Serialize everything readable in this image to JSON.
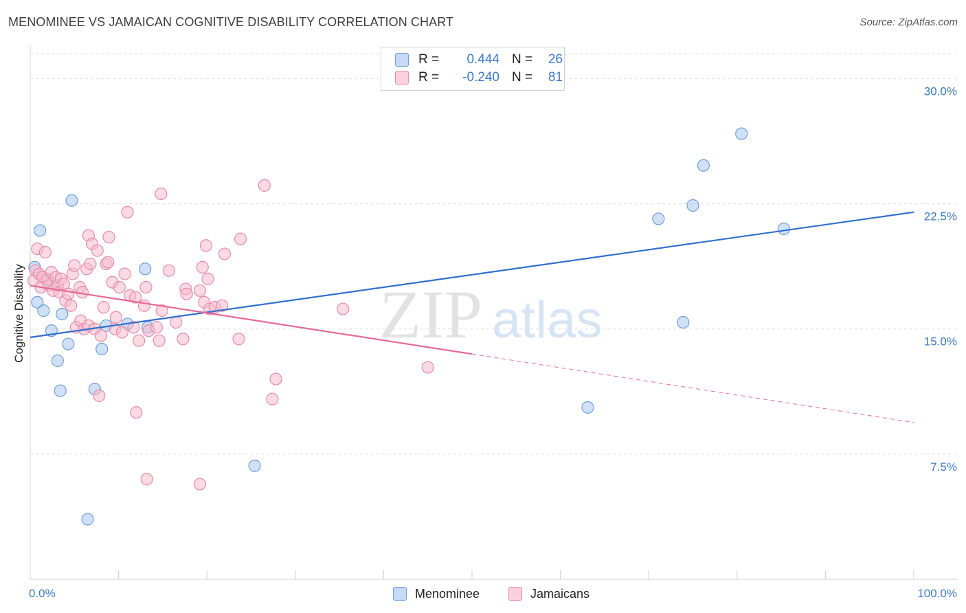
{
  "header": {
    "title": "MENOMINEE VS JAMAICAN COGNITIVE DISABILITY CORRELATION CHART",
    "source": "Source: ZipAtlas.com"
  },
  "watermark": {
    "zip": "ZIP",
    "atlas": "atlas"
  },
  "legend": {
    "rows": [
      {
        "r_label": "R =",
        "r_value": "0.444",
        "n_label": "N =",
        "n_value": "26",
        "color": "#a9c8f0",
        "border": "#6d9ee0"
      },
      {
        "r_label": "R =",
        "r_value": "-0.240",
        "n_label": "N =",
        "n_value": "81",
        "color": "#f7bccd",
        "border": "#e88aa8"
      }
    ]
  },
  "bottom_legend": {
    "series1": "Menominee",
    "series2": "Jamaicans"
  },
  "chart_data": {
    "type": "scatter",
    "title": "MENOMINEE VS JAMAICAN COGNITIVE DISABILITY CORRELATION CHART",
    "xlabel": "",
    "ylabel": "Cognitive Disability",
    "xlim": [
      0,
      100
    ],
    "ylim": [
      0,
      31.5
    ],
    "x_tick_labels": [
      "0.0%",
      "100.0%"
    ],
    "y_ticks": [
      7.5,
      15.0,
      22.5,
      30.0
    ],
    "y_tick_labels": [
      "7.5%",
      "15.0%",
      "22.5%",
      "30.0%"
    ],
    "grid": true,
    "series": [
      {
        "name": "Menominee",
        "color": "#a9c8f0",
        "edge": "#6d9ee0",
        "line_color": "#2f6fcc",
        "trend": {
          "x": [
            0,
            100
          ],
          "y": [
            14.5,
            22.0
          ],
          "dashed_from": null
        },
        "points": [
          [
            0.8,
            16.6
          ],
          [
            1.1,
            20.9
          ],
          [
            1.5,
            16.1
          ],
          [
            2.0,
            17.9
          ],
          [
            2.4,
            14.9
          ],
          [
            3.1,
            13.1
          ],
          [
            3.4,
            11.3
          ],
          [
            3.6,
            15.9
          ],
          [
            4.3,
            14.1
          ],
          [
            4.7,
            22.7
          ],
          [
            6.5,
            3.6
          ],
          [
            7.3,
            11.4
          ],
          [
            8.1,
            13.8
          ],
          [
            8.6,
            15.2
          ],
          [
            11.0,
            15.3
          ],
          [
            13.3,
            15.1
          ],
          [
            13.0,
            18.6
          ],
          [
            25.4,
            6.8
          ],
          [
            63.1,
            10.3
          ],
          [
            71.1,
            21.6
          ],
          [
            73.9,
            15.4
          ],
          [
            75.0,
            22.4
          ],
          [
            76.2,
            24.8
          ],
          [
            80.5,
            26.7
          ],
          [
            85.3,
            21.0
          ],
          [
            0.5,
            18.7
          ]
        ]
      },
      {
        "name": "Jamaicans",
        "color": "#f7bccd",
        "edge": "#e88aa8",
        "line_color": "#e56b92",
        "trend": {
          "x": [
            0,
            100
          ],
          "y": [
            17.6,
            9.4
          ],
          "dashed_from": 50
        },
        "points": [
          [
            0.4,
            17.9
          ],
          [
            0.6,
            18.5
          ],
          [
            0.8,
            19.8
          ],
          [
            1.0,
            18.3
          ],
          [
            1.2,
            17.5
          ],
          [
            1.4,
            18.1
          ],
          [
            1.7,
            19.6
          ],
          [
            1.9,
            18.0
          ],
          [
            2.1,
            17.6
          ],
          [
            2.4,
            18.4
          ],
          [
            2.6,
            17.3
          ],
          [
            2.9,
            18.1
          ],
          [
            3.1,
            17.6
          ],
          [
            3.3,
            17.2
          ],
          [
            3.5,
            18.0
          ],
          [
            3.8,
            17.7
          ],
          [
            4.0,
            16.7
          ],
          [
            4.3,
            17.1
          ],
          [
            4.6,
            16.4
          ],
          [
            4.8,
            18.3
          ],
          [
            5.0,
            18.8
          ],
          [
            5.2,
            15.1
          ],
          [
            5.6,
            17.5
          ],
          [
            5.7,
            15.5
          ],
          [
            5.9,
            17.2
          ],
          [
            6.1,
            15.0
          ],
          [
            6.4,
            18.6
          ],
          [
            6.6,
            15.2
          ],
          [
            6.6,
            20.6
          ],
          [
            6.8,
            18.9
          ],
          [
            7.0,
            20.1
          ],
          [
            7.3,
            15.0
          ],
          [
            7.6,
            19.7
          ],
          [
            7.8,
            11.0
          ],
          [
            8.0,
            14.6
          ],
          [
            8.3,
            16.3
          ],
          [
            8.6,
            18.9
          ],
          [
            8.8,
            19.0
          ],
          [
            8.9,
            20.5
          ],
          [
            9.3,
            17.8
          ],
          [
            9.6,
            15.0
          ],
          [
            9.7,
            15.7
          ],
          [
            10.1,
            17.5
          ],
          [
            10.4,
            14.8
          ],
          [
            10.7,
            18.3
          ],
          [
            11.0,
            22.0
          ],
          [
            11.3,
            17.0
          ],
          [
            11.7,
            15.1
          ],
          [
            11.9,
            16.9
          ],
          [
            12.0,
            10.0
          ],
          [
            12.3,
            14.3
          ],
          [
            12.9,
            16.4
          ],
          [
            13.1,
            17.5
          ],
          [
            13.2,
            6.0
          ],
          [
            13.4,
            14.9
          ],
          [
            14.3,
            15.1
          ],
          [
            14.6,
            14.3
          ],
          [
            14.8,
            23.1
          ],
          [
            14.9,
            16.1
          ],
          [
            15.7,
            18.5
          ],
          [
            16.5,
            15.4
          ],
          [
            17.3,
            14.4
          ],
          [
            17.6,
            17.4
          ],
          [
            17.7,
            17.1
          ],
          [
            19.2,
            17.3
          ],
          [
            19.2,
            5.7
          ],
          [
            19.5,
            18.7
          ],
          [
            19.7,
            16.6
          ],
          [
            19.9,
            20.0
          ],
          [
            20.1,
            18.0
          ],
          [
            20.3,
            16.2
          ],
          [
            20.9,
            16.3
          ],
          [
            21.7,
            16.4
          ],
          [
            22.0,
            19.5
          ],
          [
            23.6,
            14.4
          ],
          [
            23.8,
            20.4
          ],
          [
            26.5,
            23.6
          ],
          [
            27.4,
            10.8
          ],
          [
            27.8,
            12.0
          ],
          [
            35.4,
            16.2
          ],
          [
            45.0,
            12.7
          ]
        ]
      }
    ]
  }
}
